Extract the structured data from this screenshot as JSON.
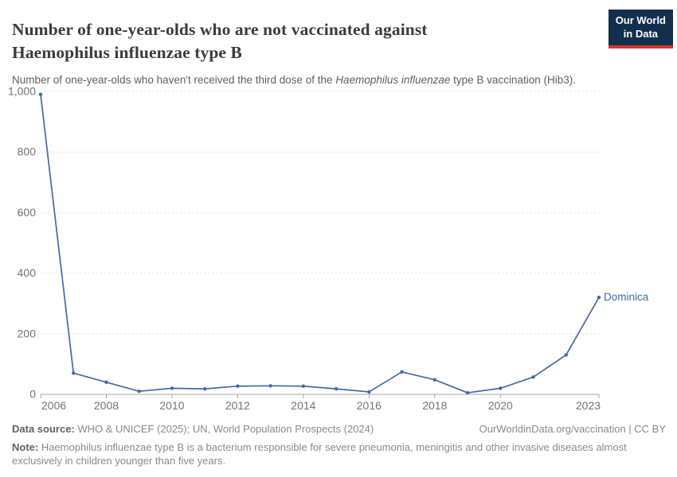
{
  "header": {
    "title": "Number of one-year-olds who are not vaccinated against Haemophilus influenzae type B",
    "subtitle_prefix": "Number of one-year-olds who haven't received the third dose of the ",
    "subtitle_italic": "Haemophilus influenzae",
    "subtitle_suffix": " type B vaccination (Hib3).",
    "logo_line1": "Our World",
    "logo_line2": "in Data"
  },
  "chart_data": {
    "type": "line",
    "title": "Number of one-year-olds who are not vaccinated against Haemophilus influenzae type B",
    "xlabel": "",
    "ylabel": "",
    "x": [
      2006,
      2007,
      2008,
      2009,
      2010,
      2011,
      2012,
      2013,
      2014,
      2015,
      2016,
      2017,
      2018,
      2019,
      2020,
      2021,
      2022,
      2023
    ],
    "series": [
      {
        "name": "Dominica",
        "values": [
          990,
          70,
          40,
          10,
          20,
          18,
          27,
          28,
          27,
          18,
          8,
          74,
          48,
          5,
          20,
          57,
          130,
          320
        ]
      }
    ],
    "ylim": [
      0,
      1000
    ],
    "yticks": [
      0,
      200,
      400,
      600,
      800,
      1000
    ],
    "ytick_labels": [
      "0",
      "200",
      "400",
      "600",
      "800",
      "1,000"
    ],
    "xticks": [
      2006,
      2008,
      2010,
      2012,
      2014,
      2016,
      2018,
      2020,
      2023
    ],
    "grid": "horizontal-dashed",
    "legend_position": "end-of-line-label",
    "end_label": "Dominica"
  },
  "colors": {
    "line": "#4668a3",
    "entity_label": "#4668a3",
    "gridline": "#e0e0e0",
    "axis": "#a5a5a5",
    "tick_text": "#737373",
    "logo_bg": "#12304e",
    "logo_red": "#d8352e"
  },
  "footer": {
    "datasource_label": "Data source:",
    "datasource_text": " WHO & UNICEF (2025); UN, World Population Prospects (2024)",
    "attribution": "OurWorldinData.org/vaccination | CC BY",
    "note_label": "Note:",
    "note_text": " Haemophilus influenzae type B is a bacterium responsible for severe pneumonia, meningitis and other invasive diseases almost exclusively in children younger than five years."
  }
}
